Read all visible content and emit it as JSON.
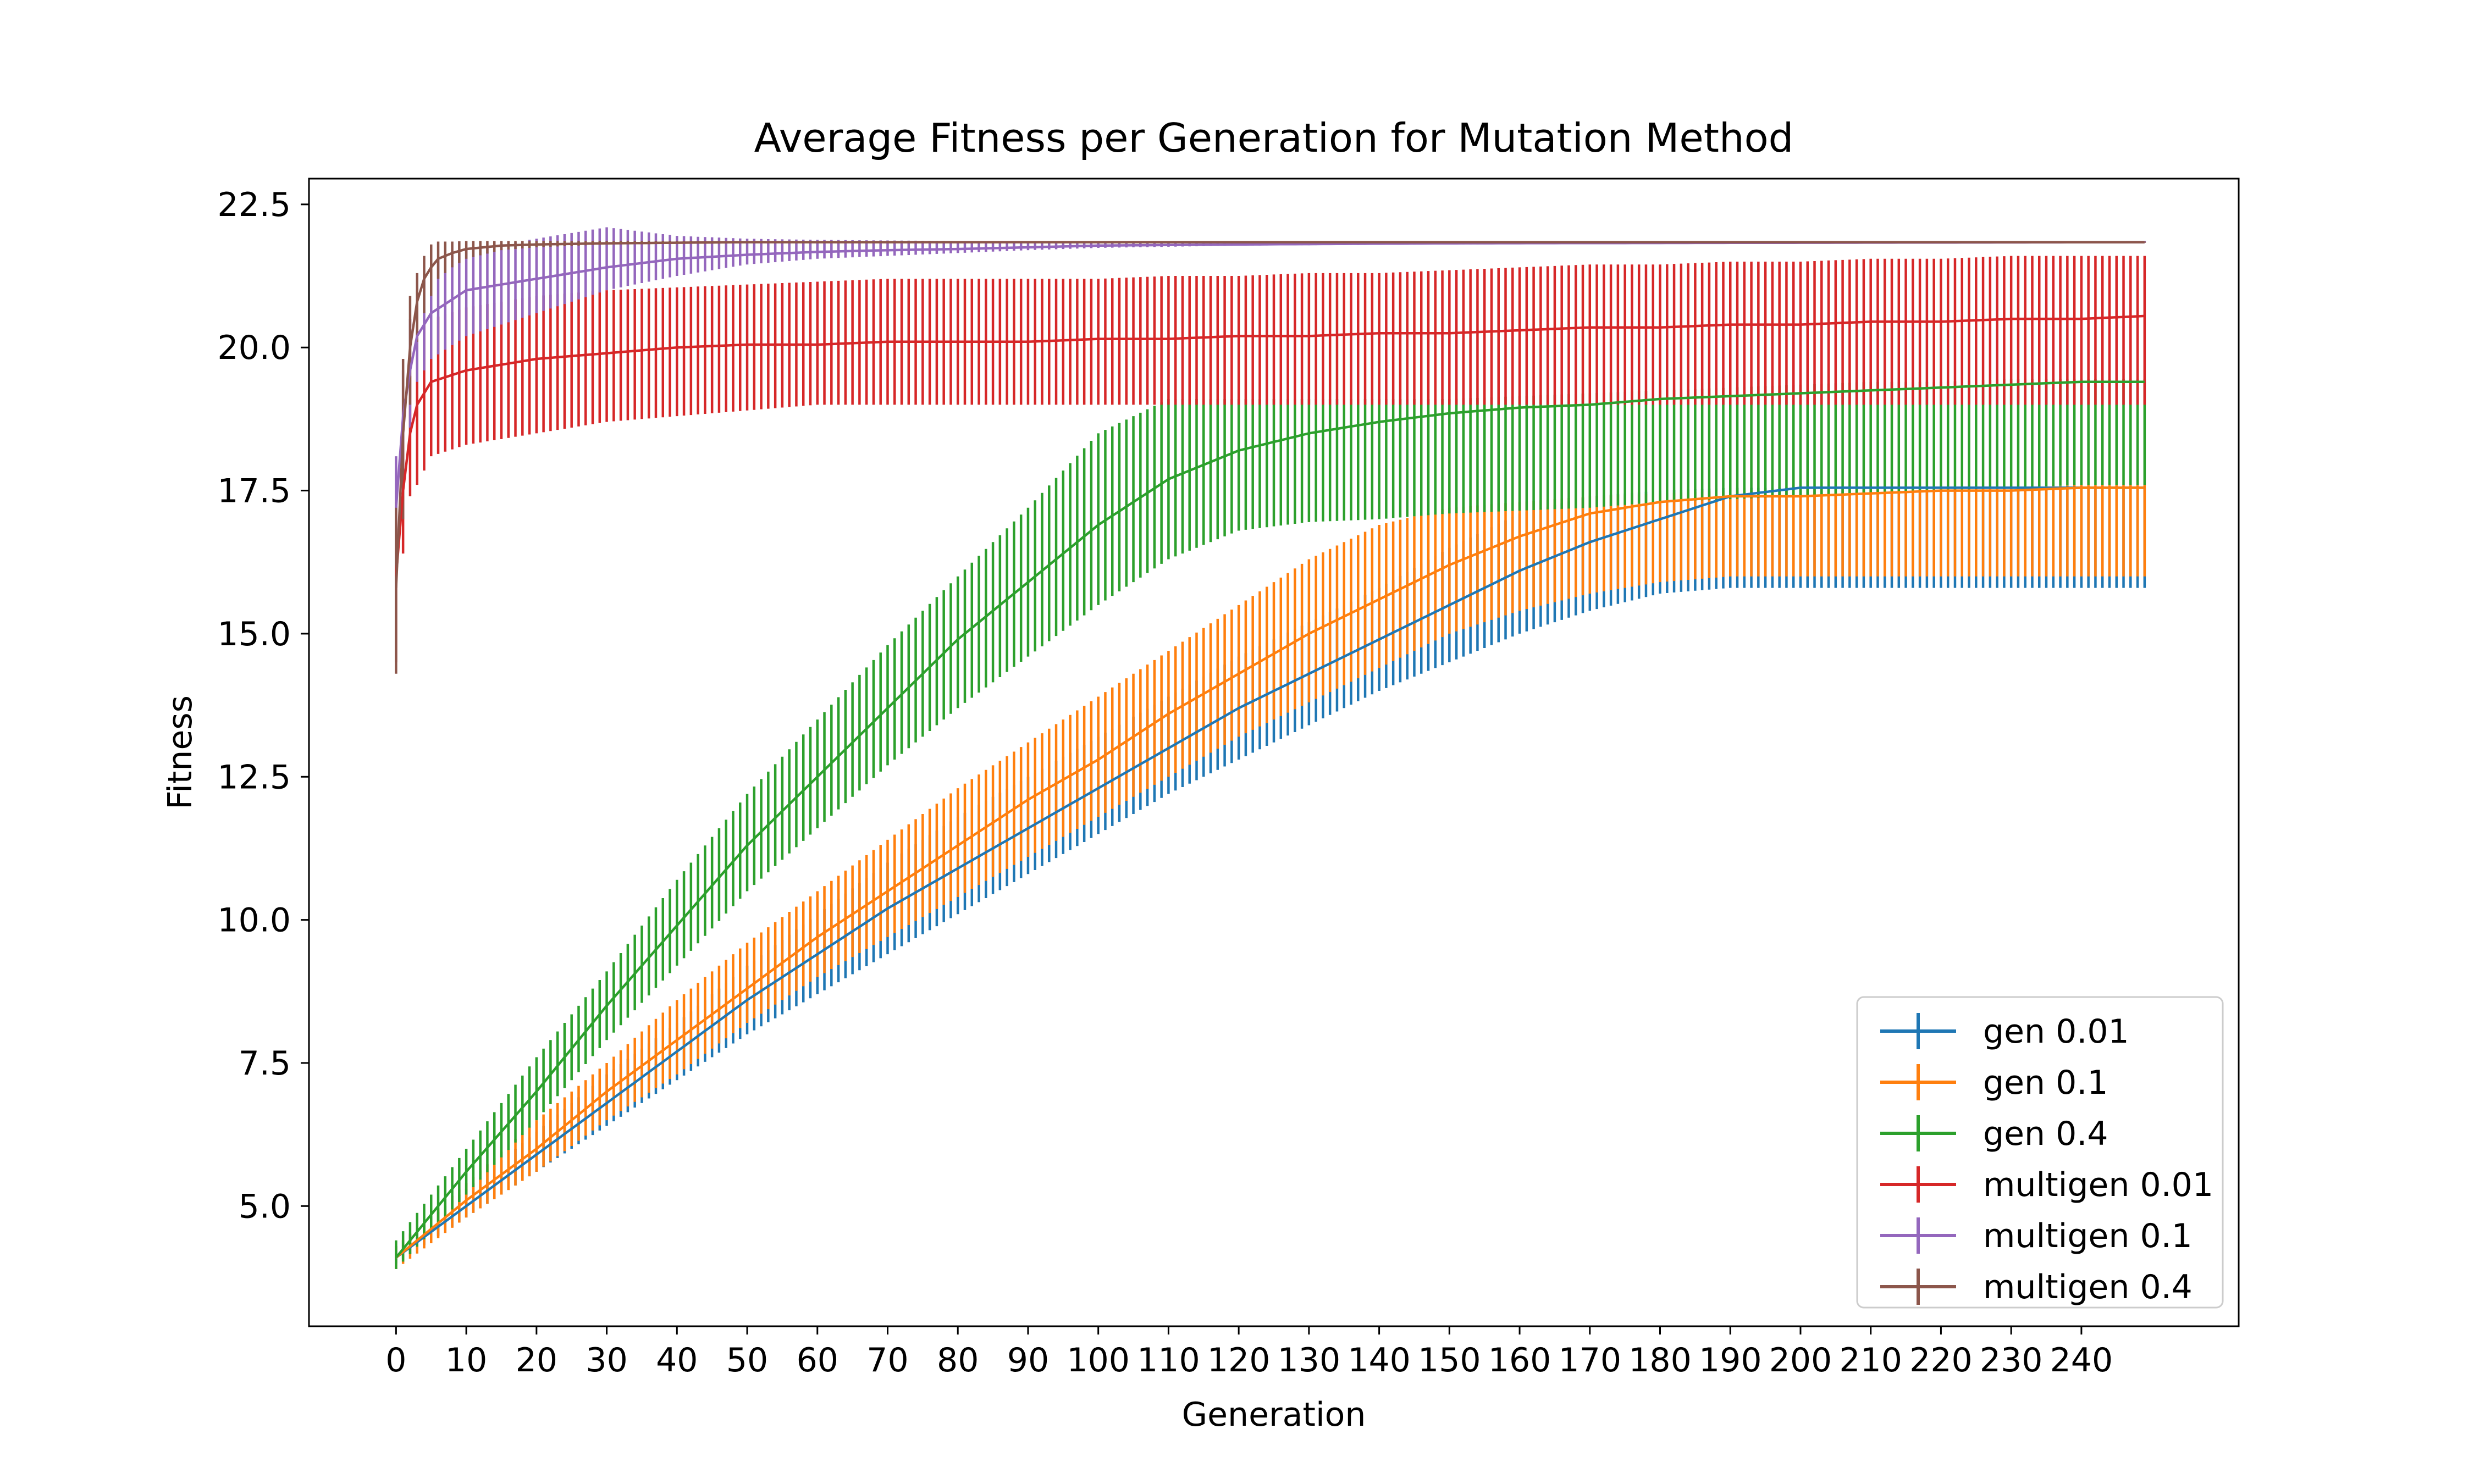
{
  "chart_data": {
    "type": "line",
    "title": "Average Fitness per Generation for Mutation Method",
    "xlabel": "Generation",
    "ylabel": "Fitness",
    "xlim": [
      -12.4,
      262.4
    ],
    "ylim": [
      2.9,
      22.95
    ],
    "xticks": [
      0,
      10,
      20,
      30,
      40,
      50,
      60,
      70,
      80,
      90,
      100,
      110,
      120,
      130,
      140,
      150,
      160,
      170,
      180,
      190,
      200,
      210,
      220,
      230,
      240
    ],
    "yticks": [
      5.0,
      7.5,
      10.0,
      12.5,
      15.0,
      17.5,
      20.0,
      22.5
    ],
    "ytick_labels": [
      "5.0",
      "7.5",
      "10.0",
      "12.5",
      "15.0",
      "17.5",
      "20.0",
      "22.5"
    ],
    "legend_position": "lower-right",
    "error_bars": true,
    "generations": 250,
    "series": [
      {
        "name": "gen 0.01",
        "color": "#1f77b4",
        "x": [
          0,
          10,
          20,
          30,
          40,
          50,
          60,
          70,
          80,
          90,
          100,
          110,
          120,
          130,
          140,
          150,
          160,
          170,
          180,
          190,
          200,
          210,
          220,
          230,
          240,
          249
        ],
        "y": [
          4.1,
          5.0,
          5.9,
          6.8,
          7.7,
          8.6,
          9.4,
          10.2,
          10.9,
          11.6,
          12.3,
          13.0,
          13.7,
          14.3,
          14.9,
          15.5,
          16.1,
          16.6,
          17.0,
          17.4,
          17.55,
          17.55,
          17.55,
          17.55,
          17.55,
          17.55
        ],
        "err_low": [
          4.0,
          4.8,
          5.6,
          6.4,
          7.2,
          8.0,
          8.7,
          9.4,
          10.1,
          10.8,
          11.5,
          12.2,
          12.8,
          13.4,
          14.0,
          14.5,
          15.0,
          15.4,
          15.7,
          15.8,
          15.8,
          15.8,
          15.8,
          15.8,
          15.8,
          15.8
        ],
        "err_high": [
          4.3,
          5.3,
          6.3,
          7.3,
          8.2,
          9.2,
          10.1,
          11.0,
          11.8,
          12.5,
          13.2,
          13.9,
          14.6,
          15.2,
          15.8,
          16.5,
          17.1,
          17.4,
          17.5,
          17.55,
          17.55,
          17.55,
          17.55,
          17.55,
          17.55,
          17.55
        ]
      },
      {
        "name": "gen 0.1",
        "color": "#ff7f0e",
        "x": [
          0,
          10,
          20,
          30,
          40,
          50,
          60,
          70,
          80,
          90,
          100,
          110,
          120,
          130,
          140,
          150,
          160,
          170,
          180,
          190,
          200,
          210,
          220,
          230,
          240,
          249
        ],
        "y": [
          4.1,
          5.1,
          6.0,
          7.0,
          7.9,
          8.8,
          9.7,
          10.5,
          11.3,
          12.1,
          12.8,
          13.6,
          14.3,
          15.0,
          15.6,
          16.2,
          16.7,
          17.1,
          17.3,
          17.4,
          17.4,
          17.45,
          17.5,
          17.5,
          17.55,
          17.55
        ],
        "err_low": [
          3.9,
          4.8,
          5.6,
          6.5,
          7.3,
          8.2,
          9.0,
          9.7,
          10.4,
          11.1,
          11.8,
          12.5,
          13.2,
          13.8,
          14.4,
          15.0,
          15.4,
          15.7,
          15.9,
          16.0,
          16.0,
          16.0,
          16.0,
          16.0,
          16.0,
          16.0
        ],
        "err_high": [
          4.3,
          5.4,
          6.5,
          7.5,
          8.6,
          9.6,
          10.5,
          11.4,
          12.3,
          13.1,
          13.9,
          14.7,
          15.5,
          16.3,
          16.9,
          17.2,
          17.3,
          17.4,
          17.45,
          17.5,
          17.5,
          17.5,
          17.55,
          17.55,
          17.6,
          17.6
        ]
      },
      {
        "name": "gen 0.4",
        "color": "#2ca02c",
        "x": [
          0,
          10,
          20,
          30,
          40,
          50,
          60,
          70,
          80,
          90,
          100,
          110,
          120,
          130,
          140,
          150,
          160,
          170,
          180,
          190,
          200,
          210,
          220,
          230,
          240,
          249
        ],
        "y": [
          4.1,
          5.6,
          7.0,
          8.5,
          9.9,
          11.3,
          12.5,
          13.7,
          14.9,
          15.9,
          16.9,
          17.7,
          18.2,
          18.5,
          18.7,
          18.85,
          18.95,
          19.0,
          19.1,
          19.15,
          19.2,
          19.25,
          19.3,
          19.35,
          19.4,
          19.4
        ],
        "err_low": [
          3.9,
          5.2,
          6.5,
          7.9,
          9.2,
          10.5,
          11.6,
          12.7,
          13.7,
          14.6,
          15.5,
          16.3,
          16.8,
          16.95,
          17.0,
          17.1,
          17.15,
          17.2,
          17.3,
          17.35,
          17.4,
          17.45,
          17.5,
          17.55,
          17.6,
          17.6
        ],
        "err_high": [
          4.4,
          6.0,
          7.6,
          9.1,
          10.7,
          12.2,
          13.5,
          14.8,
          16.0,
          17.2,
          18.5,
          19.1,
          19.1,
          19.1,
          19.1,
          19.1,
          19.15,
          19.2,
          19.25,
          19.3,
          19.35,
          19.4,
          19.4,
          19.45,
          19.45,
          19.45
        ]
      },
      {
        "name": "multigen 0.01",
        "color": "#d62728",
        "x": [
          0,
          1,
          2,
          3,
          5,
          10,
          20,
          30,
          40,
          50,
          60,
          70,
          80,
          90,
          100,
          110,
          120,
          130,
          140,
          150,
          160,
          170,
          180,
          190,
          200,
          210,
          220,
          230,
          240,
          249
        ],
        "y": [
          16.0,
          17.5,
          18.5,
          19.0,
          19.4,
          19.6,
          19.8,
          19.9,
          20.0,
          20.05,
          20.05,
          20.1,
          20.1,
          20.1,
          20.15,
          20.15,
          20.2,
          20.2,
          20.25,
          20.25,
          20.3,
          20.35,
          20.35,
          20.4,
          20.4,
          20.45,
          20.45,
          20.5,
          20.5,
          20.55
        ],
        "err_low": [
          14.5,
          16.4,
          17.4,
          17.6,
          18.1,
          18.3,
          18.5,
          18.7,
          18.8,
          18.9,
          19.0,
          19.0,
          19.0,
          19.0,
          19.0,
          19.0,
          19.0,
          19.0,
          19.0,
          19.0,
          19.0,
          19.0,
          19.0,
          19.0,
          19.0,
          19.0,
          19.0,
          19.0,
          19.0,
          19.0
        ],
        "err_high": [
          17.5,
          18.5,
          19.5,
          20.3,
          20.5,
          20.7,
          20.9,
          21.0,
          21.05,
          21.1,
          21.15,
          21.2,
          21.2,
          21.2,
          21.2,
          21.25,
          21.25,
          21.3,
          21.3,
          21.35,
          21.4,
          21.45,
          21.45,
          21.5,
          21.5,
          21.55,
          21.55,
          21.6,
          21.6,
          21.6
        ]
      },
      {
        "name": "multigen 0.1",
        "color": "#9467bd",
        "x": [
          0,
          1,
          2,
          3,
          5,
          10,
          20,
          30,
          40,
          50,
          60,
          70,
          80,
          90,
          100,
          120,
          150,
          200,
          249
        ],
        "y": [
          17.2,
          18.8,
          19.6,
          20.2,
          20.6,
          21.0,
          21.2,
          21.4,
          21.55,
          21.62,
          21.67,
          21.7,
          21.72,
          21.75,
          21.78,
          21.8,
          21.82,
          21.83,
          21.84
        ],
        "err_low": [
          16.5,
          17.8,
          18.6,
          19.4,
          19.8,
          20.2,
          20.6,
          21.0,
          21.25,
          21.45,
          21.55,
          21.6,
          21.65,
          21.7,
          21.74,
          21.78,
          21.8,
          21.82,
          21.83
        ],
        "err_high": [
          18.1,
          19.6,
          20.5,
          21.0,
          21.5,
          21.7,
          21.9,
          22.1,
          21.95,
          21.9,
          21.88,
          21.87,
          21.86,
          21.86,
          21.86,
          21.86,
          21.86,
          21.86,
          21.86
        ]
      },
      {
        "name": "multigen 0.4",
        "color": "#8c564b",
        "x": [
          0,
          1,
          2,
          3,
          4,
          5,
          6,
          8,
          10,
          15,
          20,
          30,
          50,
          100,
          150,
          200,
          249
        ],
        "y": [
          15.8,
          18.5,
          20.0,
          20.8,
          21.2,
          21.4,
          21.55,
          21.65,
          21.72,
          21.78,
          21.8,
          21.82,
          21.84,
          21.84,
          21.84,
          21.84,
          21.84
        ],
        "err_low": [
          14.3,
          17.0,
          19.0,
          20.1,
          20.6,
          20.9,
          21.2,
          21.4,
          21.55,
          21.7,
          21.75,
          21.8,
          21.82,
          21.83,
          21.83,
          21.83,
          21.83
        ],
        "err_high": [
          17.3,
          19.8,
          20.9,
          21.3,
          21.6,
          21.8,
          21.85,
          21.85,
          21.86,
          21.86,
          21.86,
          21.86,
          21.86,
          21.85,
          21.85,
          21.85,
          21.85
        ]
      }
    ]
  }
}
